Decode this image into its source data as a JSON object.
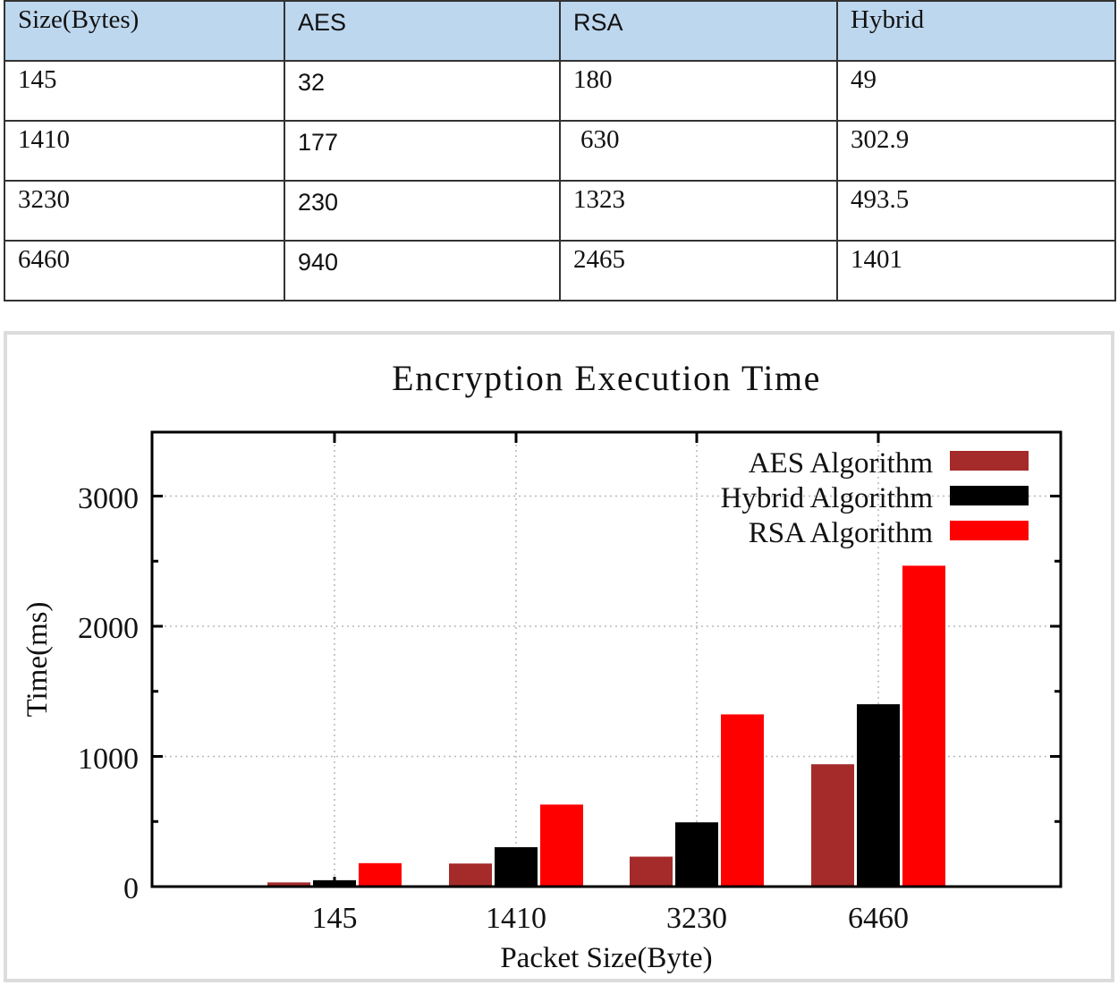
{
  "table": {
    "headers": [
      "Size(Bytes)",
      "AES",
      "RSA",
      "Hybrid"
    ],
    "rows": [
      [
        "145",
        "32",
        "180",
        "49"
      ],
      [
        "1410",
        "177",
        "630",
        "302.9"
      ],
      [
        "3230",
        "230",
        "1323",
        "493.5"
      ],
      [
        "6460",
        "940",
        "2465",
        "1401"
      ]
    ],
    "header_bg": "#bdd7ee"
  },
  "chart_data": {
    "type": "bar",
    "title": "Encryption Execution Time",
    "xlabel": "Packet Size(Byte)",
    "ylabel": "Time(ms)",
    "categories": [
      "145",
      "1410",
      "3230",
      "6460"
    ],
    "series": [
      {
        "name": "AES Algorithm",
        "color": "#a52a2a",
        "values": [
          32,
          177,
          230,
          940
        ]
      },
      {
        "name": "Hybrid Algorithm",
        "color": "#000000",
        "values": [
          49,
          302.9,
          493.5,
          1401
        ]
      },
      {
        "name": "RSA Algorithm",
        "color": "#ff0000",
        "values": [
          180,
          630,
          1323,
          2465
        ]
      }
    ],
    "yticks": [
      "0",
      "1000",
      "2000",
      "3000"
    ],
    "ylim": [
      0,
      3500
    ],
    "grid": true,
    "legend_position": "top-right"
  }
}
